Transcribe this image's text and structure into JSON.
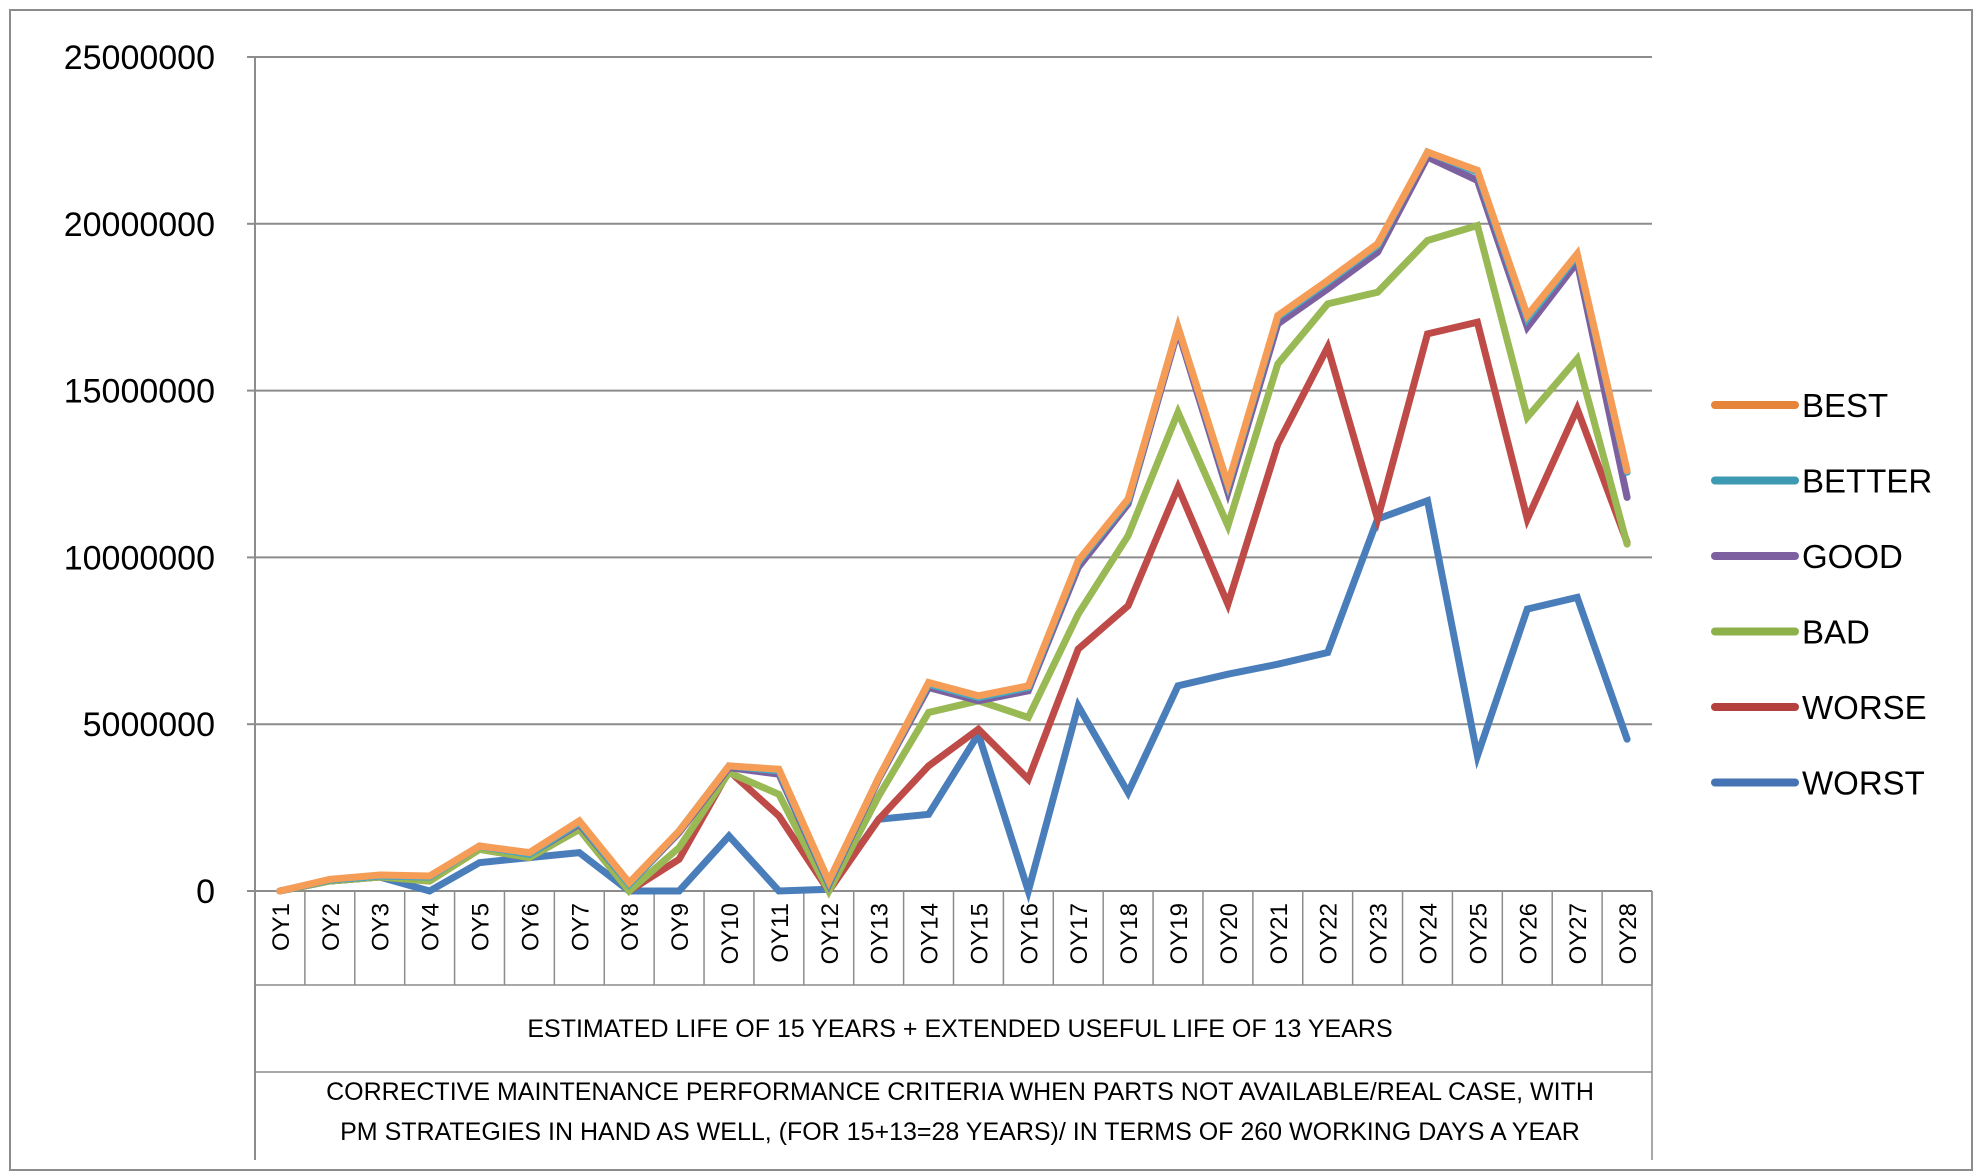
{
  "chart_data": {
    "type": "line",
    "title": "",
    "ylim": [
      0,
      25000000
    ],
    "yticks": [
      "0",
      "5000000",
      "10000000",
      "15000000",
      "20000000",
      "25000000"
    ],
    "categories": [
      "OY1",
      "OY2",
      "OY3",
      "OY4",
      "OY5",
      "OY6",
      "OY7",
      "OY8",
      "OY9",
      "OY10",
      "OY11",
      "OY12",
      "OY13",
      "OY14",
      "OY15",
      "OY16",
      "OY17",
      "OY18",
      "OY19",
      "OY20",
      "OY21",
      "OY22",
      "OY23",
      "OY24",
      "OY25",
      "OY26",
      "OY27",
      "OY28"
    ],
    "xlabel": "ESTIMATED LIFE OF 15 YEARS + EXTENDED USEFUL LIFE OF 13 YEARS",
    "caption_lines": [
      "CORRECTIVE MAINTENANCE PERFORMANCE CRITERIA WHEN PARTS NOT AVAILABLE/REAL CASE, WITH",
      "PM STRATEGIES IN HAND AS WELL, (FOR 15+13=28 YEARS)/ IN TERMS OF 260 WORKING DAYS A YEAR"
    ],
    "grid": true,
    "legend_position": "right",
    "series": [
      {
        "name": "WORST",
        "color": "#4a7ebb",
        "values": [
          0,
          300000,
          420000,
          0,
          850000,
          1000000,
          1150000,
          0,
          0,
          1650000,
          0,
          50000,
          2150000,
          2300000,
          4700000,
          0,
          5550000,
          2950000,
          6150000,
          6500000,
          6800000,
          7150000,
          11150000,
          11700000,
          4050000,
          8450000,
          8800000,
          4550000
        ]
      },
      {
        "name": "WORSE",
        "color": "#be4b48",
        "values": [
          0,
          300000,
          420000,
          300000,
          1250000,
          1000000,
          1850000,
          0,
          950000,
          3600000,
          2250000,
          0,
          2150000,
          3750000,
          4850000,
          3350000,
          7250000,
          8550000,
          12100000,
          8600000,
          13400000,
          16300000,
          11150000,
          16700000,
          17050000,
          11150000,
          14450000,
          10450000
        ]
      },
      {
        "name": "BAD",
        "color": "#98b954",
        "values": [
          0,
          300000,
          420000,
          300000,
          1250000,
          1000000,
          1850000,
          0,
          1300000,
          3550000,
          2900000,
          0,
          2850000,
          5350000,
          5700000,
          5200000,
          8300000,
          10650000,
          14350000,
          10950000,
          15800000,
          17600000,
          17950000,
          19500000,
          19950000,
          14200000,
          15950000,
          10400000
        ]
      },
      {
        "name": "GOOD",
        "color": "#7d60a0",
        "values": [
          0,
          330000,
          450000,
          420000,
          1350000,
          1100000,
          2000000,
          200000,
          1750000,
          3700000,
          3500000,
          200000,
          3350000,
          6100000,
          5700000,
          6000000,
          9700000,
          11600000,
          16800000,
          11950000,
          17000000,
          18050000,
          19150000,
          22000000,
          21300000,
          16900000,
          18850000,
          11800000
        ]
      },
      {
        "name": "BETTER",
        "color": "#46aac5",
        "values": [
          0,
          330000,
          450000,
          420000,
          1350000,
          1100000,
          2050000,
          200000,
          1800000,
          3750000,
          3600000,
          250000,
          3400000,
          6200000,
          5800000,
          6100000,
          9850000,
          11700000,
          16900000,
          12150000,
          17200000,
          18250000,
          19350000,
          22150000,
          21550000,
          17150000,
          19050000,
          12550000
        ]
      },
      {
        "name": "BEST",
        "color": "#f59d56",
        "values": [
          0,
          350000,
          480000,
          450000,
          1350000,
          1150000,
          2100000,
          250000,
          1800000,
          3750000,
          3650000,
          300000,
          3400000,
          6250000,
          5850000,
          6150000,
          9900000,
          11750000,
          16900000,
          12200000,
          17250000,
          18300000,
          19400000,
          22150000,
          21600000,
          17250000,
          19100000,
          12600000
        ]
      }
    ],
    "legend_order": [
      "BEST",
      "BETTER",
      "GOOD",
      "BAD",
      "WORSE",
      "WORST"
    ],
    "legend_colors": [
      "#e6843a",
      "#3c9ab3",
      "#7d60a0",
      "#8cb04a",
      "#b4413e",
      "#4573b4"
    ]
  }
}
